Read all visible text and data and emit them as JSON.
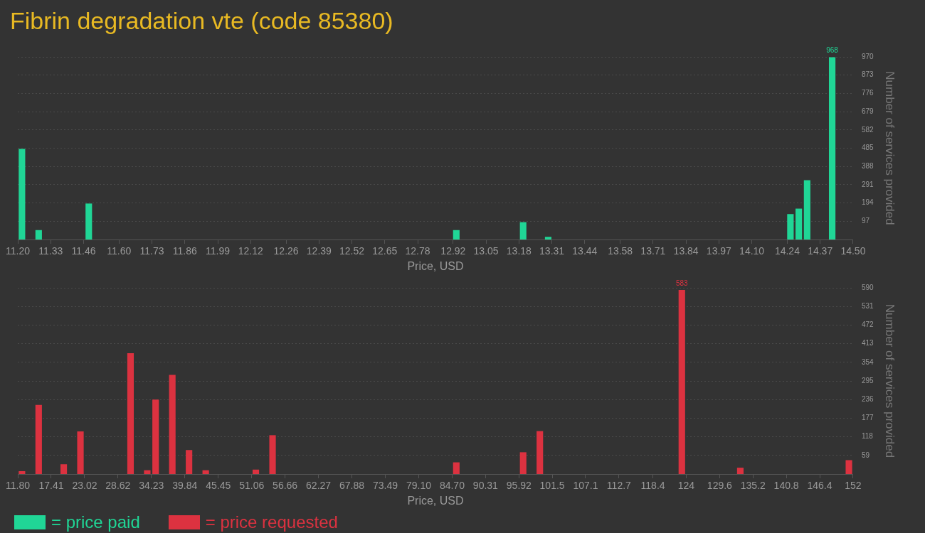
{
  "chart_data": [
    {
      "type": "histogram",
      "title": "Fibrin degradation vte (code 85380)",
      "xlabel": "Price, USD",
      "ylabel": "Number of services provided",
      "grid": "y",
      "legend": "bottom",
      "bins": [
        11.2,
        11.233,
        11.266,
        11.299,
        11.332,
        11.365,
        11.398,
        11.431,
        11.464,
        11.497,
        11.53,
        11.563,
        11.596,
        11.629,
        11.662,
        11.695,
        11.728,
        11.761,
        11.794,
        11.827,
        11.86,
        11.893,
        11.926,
        11.959,
        11.992,
        12.025,
        12.058,
        12.091,
        12.124,
        12.157,
        12.19,
        12.223,
        12.256,
        12.289,
        12.322,
        12.355,
        12.388,
        12.421,
        12.454,
        12.487,
        12.52,
        12.553,
        12.586,
        12.619,
        12.652,
        12.685,
        12.718,
        12.751,
        12.784,
        12.817,
        12.85,
        12.883,
        12.916,
        12.949,
        12.982,
        13.015,
        13.048,
        13.081,
        13.114,
        13.147,
        13.18,
        13.213,
        13.246,
        13.279,
        13.312,
        13.345,
        13.378,
        13.411,
        13.444,
        13.477,
        13.51,
        13.543,
        13.576,
        13.609,
        13.642,
        13.675,
        13.708,
        13.741,
        13.774,
        13.807,
        13.84,
        13.873,
        13.906,
        13.939,
        13.972,
        14.005,
        14.038,
        14.071,
        14.104,
        14.137,
        14.17,
        14.203,
        14.236,
        14.269,
        14.302,
        14.335,
        14.368,
        14.401,
        14.434,
        14.467,
        14.5
      ],
      "series": [
        {
          "name": "= price paid",
          "color": "#20d696",
          "values": [
            481,
            0,
            50,
            0,
            0,
            0,
            0,
            0,
            191,
            0,
            0,
            0,
            0,
            0,
            0,
            0,
            0,
            0,
            0,
            0,
            0,
            0,
            0,
            0,
            0,
            0,
            0,
            0,
            0,
            0,
            0,
            0,
            0,
            0,
            0,
            0,
            0,
            0,
            0,
            0,
            0,
            0,
            0,
            0,
            0,
            0,
            0,
            0,
            0,
            0,
            0,
            0,
            50,
            0,
            0,
            0,
            0,
            0,
            0,
            0,
            92,
            0,
            0,
            14,
            0,
            0,
            0,
            0,
            0,
            0,
            0,
            0,
            0,
            0,
            0,
            0,
            0,
            0,
            0,
            0,
            0,
            0,
            0,
            0,
            0,
            0,
            0,
            0,
            0,
            0,
            0,
            0,
            135,
            164,
            315,
            0,
            0,
            968,
            0,
            0
          ],
          "value_labels": [
            null,
            null,
            null,
            null,
            null,
            null,
            null,
            null,
            null,
            null,
            null,
            null,
            null,
            null,
            null,
            null,
            null,
            null,
            null,
            null,
            null,
            null,
            null,
            null,
            null,
            null,
            null,
            null,
            null,
            null,
            null,
            null,
            null,
            null,
            null,
            null,
            null,
            null,
            null,
            null,
            null,
            null,
            null,
            null,
            null,
            null,
            null,
            null,
            null,
            null,
            null,
            null,
            null,
            null,
            null,
            null,
            null,
            null,
            null,
            null,
            null,
            null,
            null,
            null,
            null,
            null,
            null,
            null,
            null,
            null,
            null,
            null,
            null,
            null,
            null,
            null,
            null,
            null,
            null,
            null,
            null,
            null,
            null,
            null,
            null,
            null,
            null,
            null,
            null,
            null,
            null,
            null,
            null,
            null,
            null,
            null,
            null,
            "968",
            null,
            null
          ]
        }
      ],
      "xlim": [
        11.2,
        14.5
      ],
      "xticks": [
        {
          "value": 11.2,
          "label": "11.20"
        },
        11.33,
        11.46,
        {
          "value": 11.6,
          "label": "11.60"
        },
        11.73,
        11.86,
        11.99,
        12.12,
        12.26,
        12.39,
        12.52,
        12.65,
        12.78,
        12.92,
        13.05,
        13.18,
        13.31,
        13.44,
        13.58,
        13.71,
        13.84,
        13.97,
        {
          "value": 14.1,
          "label": "14.10"
        },
        14.24,
        14.37,
        {
          "value": 14.5,
          "label": "14.50"
        }
      ],
      "ylim": [
        0,
        970
      ],
      "yticks": [
        97,
        194,
        291,
        388,
        485,
        582,
        679,
        776,
        873,
        970
      ]
    },
    {
      "type": "histogram",
      "xlabel": "Price, USD",
      "ylabel": "Number of services provided",
      "grid": "y",
      "legend": "bottom",
      "bins": [
        11.8,
        13.202,
        14.604,
        16.006,
        17.408,
        18.81,
        20.212,
        21.614,
        23.016,
        24.418,
        25.82,
        27.222,
        28.624,
        30.026,
        31.428,
        32.83,
        34.232,
        35.634,
        37.036,
        38.438,
        39.84,
        41.242,
        42.644,
        44.046,
        45.448,
        46.85,
        48.252,
        49.654,
        51.056,
        52.458,
        53.86,
        55.262,
        56.664,
        58.066,
        59.468,
        60.87,
        62.272,
        63.674,
        65.076,
        66.478,
        67.88,
        69.282,
        70.684,
        72.086,
        73.488,
        74.89,
        76.292,
        77.694,
        79.096,
        80.498,
        81.9,
        83.302,
        84.704,
        86.106,
        87.508,
        88.91,
        90.312,
        91.714,
        93.116,
        94.518,
        95.92,
        97.322,
        98.724,
        100.126,
        101.528,
        102.93,
        104.332,
        105.734,
        107.136,
        108.538,
        109.94,
        111.342,
        112.744,
        114.146,
        115.548,
        116.95,
        118.352,
        119.754,
        121.156,
        122.558,
        123.96,
        125.362,
        126.764,
        128.166,
        129.568,
        130.97,
        132.372,
        133.774,
        135.176,
        136.578,
        137.98,
        139.382,
        140.784,
        142.186,
        143.588,
        144.99,
        146.392,
        147.794,
        149.196,
        150.598,
        152
      ],
      "series": [
        {
          "name": "= price requested",
          "color": "#dc3240",
          "values": [
            9,
            0,
            219,
            0,
            0,
            31,
            0,
            135,
            0,
            0,
            0,
            0,
            0,
            383,
            0,
            12,
            236,
            0,
            314,
            0,
            76,
            0,
            12,
            0,
            0,
            0,
            0,
            0,
            14,
            0,
            123,
            0,
            0,
            0,
            0,
            0,
            0,
            0,
            0,
            0,
            0,
            0,
            0,
            0,
            0,
            0,
            0,
            0,
            0,
            0,
            0,
            0,
            37,
            0,
            0,
            0,
            0,
            0,
            0,
            0,
            69,
            0,
            136,
            0,
            0,
            0,
            0,
            0,
            0,
            0,
            0,
            0,
            0,
            0,
            0,
            0,
            0,
            0,
            0,
            583,
            0,
            0,
            0,
            0,
            0,
            0,
            20,
            0,
            0,
            0,
            0,
            0,
            0,
            0,
            0,
            0,
            0,
            0,
            0,
            44
          ],
          "value_labels": [
            null,
            null,
            null,
            null,
            null,
            null,
            null,
            null,
            null,
            null,
            null,
            null,
            null,
            null,
            null,
            null,
            null,
            null,
            null,
            null,
            null,
            null,
            null,
            null,
            null,
            null,
            null,
            null,
            null,
            null,
            null,
            null,
            null,
            null,
            null,
            null,
            null,
            null,
            null,
            null,
            null,
            null,
            null,
            null,
            null,
            null,
            null,
            null,
            null,
            null,
            null,
            null,
            null,
            null,
            null,
            null,
            null,
            null,
            null,
            null,
            null,
            null,
            null,
            null,
            null,
            null,
            null,
            null,
            null,
            null,
            null,
            null,
            null,
            null,
            null,
            null,
            null,
            null,
            null,
            "583",
            null,
            null,
            null,
            null,
            null,
            null,
            null,
            null,
            null,
            null,
            null,
            null,
            null,
            null,
            null,
            null,
            null,
            null,
            null,
            null
          ]
        }
      ],
      "xlim": [
        11.8,
        152
      ],
      "xticks": [
        {
          "value": 11.8,
          "label": "11.80"
        },
        17.41,
        23.02,
        28.62,
        34.23,
        39.84,
        45.45,
        51.06,
        56.66,
        62.27,
        67.88,
        73.49,
        {
          "value": 79.1,
          "label": "79.10"
        },
        {
          "value": 84.7,
          "label": "84.70"
        },
        90.31,
        95.92,
        101.5,
        107.1,
        112.7,
        118.4,
        124,
        129.6,
        135.2,
        140.8,
        146.4,
        152
      ],
      "ylim": [
        0,
        590
      ],
      "yticks": [
        59,
        118,
        177,
        236,
        295,
        354,
        413,
        472,
        531,
        590
      ]
    }
  ]
}
